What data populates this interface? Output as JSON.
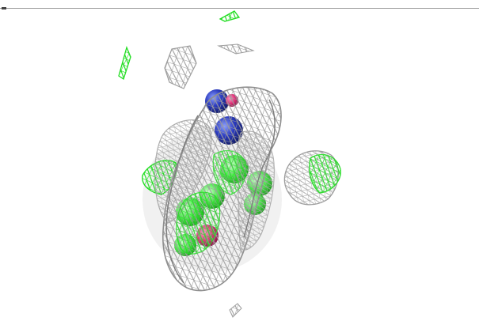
{
  "viewer": {
    "background": "#ffffff",
    "mesh_colors": {
      "density_map": "#9d9d9d",
      "difference_map": "#22dd22"
    },
    "atom_colors": {
      "nitrogen": "#2b3bbf",
      "oxygen": "#e0337a",
      "carbon_highlight": "#55ee55"
    }
  }
}
